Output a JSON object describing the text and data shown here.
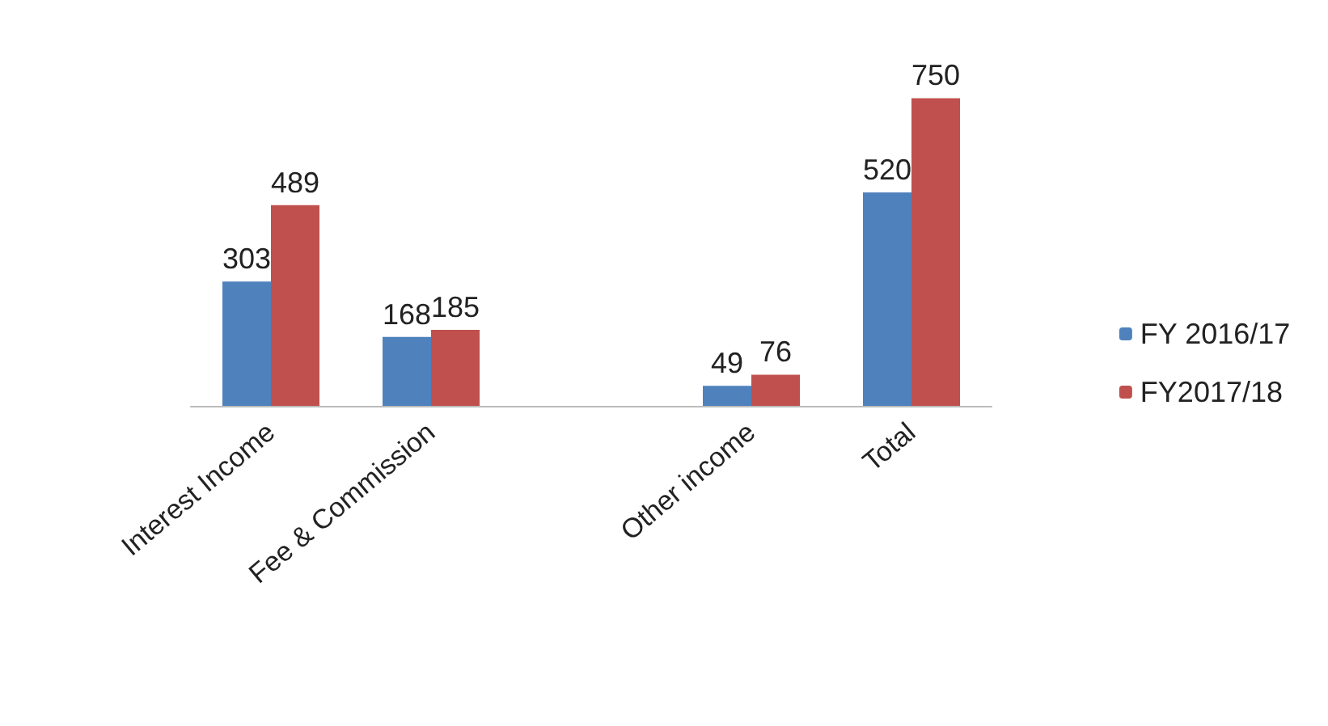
{
  "chart_data": {
    "type": "bar",
    "categories": [
      "Interest Income",
      "Fee & Commission",
      null,
      "Other income",
      "Total"
    ],
    "series": [
      {
        "name": "FY 2016/17",
        "color": "#4f81bd",
        "values": [
          303,
          168,
          null,
          49,
          520
        ]
      },
      {
        "name": "FY2017/18",
        "color": "#c0504d",
        "values": [
          489,
          185,
          null,
          76,
          750
        ]
      }
    ],
    "data_labels": true,
    "legend": "right",
    "grid": false
  }
}
